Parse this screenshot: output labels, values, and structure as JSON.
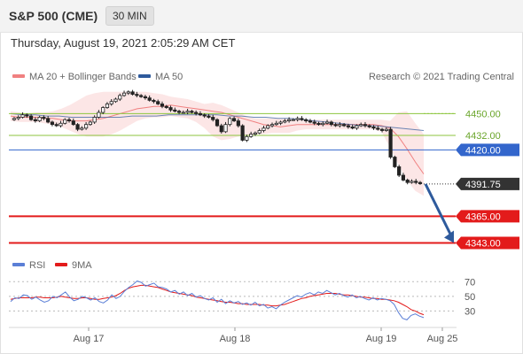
{
  "header": {
    "symbol": "S&P 500 (CME)",
    "interval": "30 MIN"
  },
  "timestamp": "Thursday, August 19, 2021 2:05:29 AM CET",
  "legend": {
    "bollinger": {
      "label": "MA 20 + Bollinger Bands",
      "color": "#f08080"
    },
    "ma50": {
      "label": "MA 50",
      "color": "#2e5a9c"
    }
  },
  "watermark": "Research © 2021 Trading Central",
  "levels": [
    {
      "value": "4450.00",
      "color": "#8dc63f",
      "text_color": "#6aa52a",
      "style": "solid",
      "tag": false
    },
    {
      "value": "4432.00",
      "color": "#8dc63f",
      "text_color": "#6aa52a",
      "style": "solid",
      "tag": false
    },
    {
      "value": "4420.00",
      "color": "#3366cc",
      "text_color": "#ffffff",
      "style": "solid",
      "tag": true
    },
    {
      "value": "4391.75",
      "color": "#333333",
      "text_color": "#ffffff",
      "style": "dotted",
      "tag": true
    },
    {
      "value": "4365.00",
      "color": "#e31b1b",
      "text_color": "#ffffff",
      "style": "solid",
      "tag": true
    },
    {
      "value": "4343.00",
      "color": "#e31b1b",
      "text_color": "#ffffff",
      "style": "solid",
      "tag": true
    }
  ],
  "rsi_legend": {
    "rsi": {
      "label": "RSI",
      "color": "#5b7fd6"
    },
    "ma9": {
      "label": "9MA",
      "color": "#e31b1b"
    }
  },
  "x_labels": [
    "Aug 17",
    "Aug 18",
    "Aug 19",
    "Aug 25"
  ],
  "chart_data": {
    "type": "candlestick",
    "price_axis": {
      "ylim": [
        4336,
        4462
      ]
    },
    "close_series": [
      4446,
      4447,
      4449,
      4448,
      4445,
      4444,
      4447,
      4446,
      4443,
      4441,
      4440,
      4442,
      4445,
      4444,
      4441,
      4437,
      4438,
      4441,
      4443,
      4447,
      4451,
      4455,
      4458,
      4460,
      4462,
      4465,
      4467,
      4468,
      4466,
      4465,
      4464,
      4463,
      4461,
      4460,
      4458,
      4456,
      4455,
      4453,
      4452,
      4451,
      4451,
      4452,
      4451,
      4450,
      4449,
      4448,
      4447,
      4445,
      4440,
      4435,
      4441,
      4446,
      4444,
      4440,
      4428,
      4431,
      4433,
      4434,
      4436,
      4438,
      4440,
      4441,
      4442,
      4443,
      4444,
      4445,
      4445,
      4446,
      4445,
      4444,
      4443,
      4442,
      4441,
      4442,
      4443,
      4441,
      4440,
      4441,
      4440,
      4439,
      4438,
      4440,
      4441,
      4440,
      4439,
      4438,
      4437,
      4436,
      4437,
      4414,
      4406,
      4399,
      4395,
      4393,
      4394,
      4393,
      4392
    ],
    "bollinger": {
      "ma": [
        4448,
        4447,
        4447,
        4447,
        4446,
        4446,
        4445,
        4444,
        4444,
        4444,
        4445,
        4446,
        4448,
        4450,
        4452,
        4454,
        4455,
        4456,
        4456,
        4457,
        4456,
        4455,
        4454,
        4453,
        4452,
        4451,
        4449,
        4447,
        4445,
        4443,
        4441,
        4440,
        4439,
        4440,
        4441,
        4441,
        4441,
        4441,
        4441,
        4441,
        4441,
        4441,
        4441,
        4441,
        4440,
        4438,
        4431,
        4421,
        4410,
        4400
      ],
      "upper": [
        4452,
        4451,
        4450,
        4451,
        4451,
        4452,
        4454,
        4457,
        4461,
        4465,
        4467,
        4468,
        4468,
        4468,
        4468,
        4468,
        4468,
        4467,
        4466,
        4464,
        4463,
        4462,
        4460,
        4458,
        4459,
        4457,
        4454,
        4451,
        4448,
        4446,
        4446,
        4446,
        4446,
        4446,
        4445,
        4445,
        4445,
        4445,
        4445,
        4445,
        4445,
        4445,
        4445,
        4445,
        4445,
        4444,
        4451,
        4452,
        4442,
        4433
      ],
      "lower": [
        4444,
        4443,
        4443,
        4443,
        4442,
        4441,
        4439,
        4436,
        4433,
        4431,
        4431,
        4431,
        4433,
        4436,
        4440,
        4444,
        4446,
        4447,
        4447,
        4448,
        4447,
        4446,
        4443,
        4438,
        4431,
        4428,
        4429,
        4431,
        4432,
        4433,
        4433,
        4434,
        4434,
        4434,
        4436,
        4437,
        4437,
        4437,
        4437,
        4437,
        4437,
        4437,
        4437,
        4437,
        4435,
        4422,
        4408,
        4395,
        4386,
        4382
      ]
    },
    "ma50": [
      4450,
      4449,
      4449,
      4448,
      4448,
      4447,
      4447,
      4447,
      4447,
      4447,
      4448,
      4448,
      4448,
      4449,
      4449,
      4449,
      4449,
      4449,
      4448,
      4448,
      4447,
      4447,
      4446,
      4446,
      4445,
      4444,
      4443,
      4442,
      4441,
      4440,
      4440,
      4439,
      4438,
      4437,
      4436
    ],
    "forecast": {
      "from": 4391.75,
      "to": 4343
    },
    "rsi": {
      "ylim": [
        10,
        80
      ],
      "ticks": [
        "70",
        "50",
        "30"
      ],
      "rsi": [
        43,
        48,
        47,
        52,
        51,
        46,
        49,
        45,
        42,
        44,
        50,
        48,
        52,
        56,
        49,
        44,
        46,
        50,
        48,
        45,
        48,
        43,
        41,
        45,
        52,
        47,
        50,
        57,
        62,
        66,
        71,
        69,
        64,
        66,
        68,
        63,
        62,
        60,
        56,
        58,
        53,
        56,
        51,
        54,
        49,
        51,
        47,
        45,
        48,
        42,
        46,
        40,
        44,
        41,
        43,
        39,
        41,
        38,
        42,
        37,
        39,
        34,
        36,
        33,
        38,
        42,
        45,
        48,
        51,
        49,
        53,
        55,
        52,
        56,
        54,
        58,
        55,
        52,
        54,
        51,
        49,
        52,
        48,
        50,
        47,
        45,
        48,
        45,
        47,
        46,
        44,
        39,
        28,
        20,
        18,
        24,
        26,
        23,
        21
      ],
      "ma9": [
        46,
        47,
        48,
        48,
        48,
        48,
        49,
        49,
        48,
        48,
        48,
        49,
        50,
        49,
        48,
        47,
        47,
        48,
        48,
        47,
        46,
        46,
        47,
        48,
        49,
        51,
        54,
        58,
        61,
        63,
        64,
        65,
        65,
        64,
        63,
        62,
        60,
        58,
        56,
        55,
        54,
        53,
        52,
        51,
        49,
        48,
        47,
        46,
        45,
        44,
        43,
        42,
        42,
        41,
        40,
        40,
        39,
        39,
        39,
        39,
        38,
        38,
        37,
        37,
        38,
        39,
        41,
        43,
        45,
        47,
        48,
        50,
        51,
        52,
        53,
        54,
        54,
        54,
        53,
        52,
        52,
        51,
        50,
        49,
        49,
        48,
        47,
        47,
        46,
        46,
        45,
        44,
        42,
        39,
        36,
        32,
        30,
        27,
        25
      ]
    }
  }
}
